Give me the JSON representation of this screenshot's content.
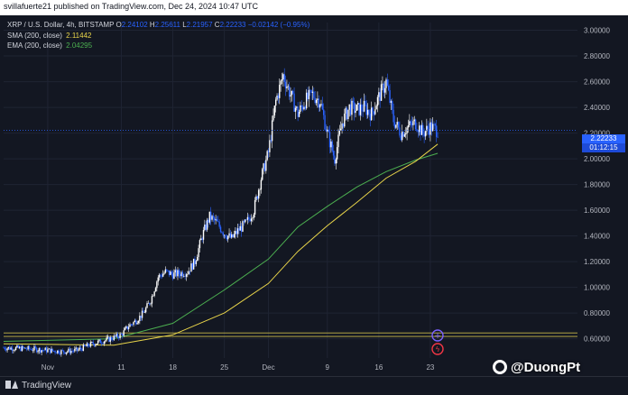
{
  "header": {
    "publisher_text": "svillafuerte21 published on TradingView.com, Dec 24, 2024 10:47 UTC"
  },
  "legend": {
    "symbol": "XRP / U.S. Dollar, 4h, BITSTAMP",
    "ohlc": [
      {
        "label": "O",
        "value": "2.24102"
      },
      {
        "label": "H",
        "value": "2.25611"
      },
      {
        "label": "L",
        "value": "2.21957"
      },
      {
        "label": "C",
        "value": "2.22233"
      }
    ],
    "change": "−0.02142 (−0.95%)",
    "indicators": [
      {
        "label": "SMA (200, close)",
        "value": "2.11442",
        "color": "#e8d44a"
      },
      {
        "label": "EMA (200, close)",
        "value": "2.04295",
        "color": "#4caf50"
      }
    ]
  },
  "price_tag": {
    "price": "2.22233",
    "countdown": "01:12:15"
  },
  "footer": {
    "brand": "TradingView"
  },
  "watermark": {
    "text": "@DuongPt"
  },
  "colors": {
    "background": "#131722",
    "candle_up": "#ffffff",
    "candle_down": "#2962ff",
    "sma": "#e8d44a",
    "ema": "#4caf50",
    "hline": "#c8b84a",
    "price_line": "#2962ff"
  },
  "chart_data": {
    "type": "candlestick",
    "symbol": "XRP / U.S. Dollar, 4h, BITSTAMP",
    "x_ticks": [
      {
        "label": "Nov",
        "x": "2024-11-01"
      },
      {
        "label": "11",
        "x": "2024-11-11"
      },
      {
        "label": "18",
        "x": "2024-11-18"
      },
      {
        "label": "25",
        "x": "2024-11-25"
      },
      {
        "label": "Dec",
        "x": "2024-12-01"
      },
      {
        "label": "9",
        "x": "2024-12-09"
      },
      {
        "label": "16",
        "x": "2024-12-16"
      },
      {
        "label": "23",
        "x": "2024-12-23"
      }
    ],
    "xlim": [
      "2024-10-26",
      "2025-01-12"
    ],
    "y_ticks": [
      "3.00000",
      "2.80000",
      "2.60000",
      "2.40000",
      "2.20000",
      "2.00000",
      "1.80000",
      "1.60000",
      "1.40000",
      "1.20000",
      "1.00000",
      "0.80000",
      "0.60000"
    ],
    "ylim": [
      0.45,
      3.06
    ],
    "horizontal_lines": [
      0.645,
      0.618
    ],
    "price_path": [
      [
        "2024-10-26",
        0.53
      ],
      [
        "2024-10-30",
        0.52
      ],
      [
        "2024-11-03",
        0.5
      ],
      [
        "2024-11-05",
        0.51
      ],
      [
        "2024-11-07",
        0.56
      ],
      [
        "2024-11-09",
        0.59
      ],
      [
        "2024-11-11",
        0.63
      ],
      [
        "2024-11-12",
        0.7
      ],
      [
        "2024-11-13",
        0.74
      ],
      [
        "2024-11-14",
        0.8
      ],
      [
        "2024-11-15",
        0.9
      ],
      [
        "2024-11-16",
        1.08
      ],
      [
        "2024-11-17",
        1.12
      ],
      [
        "2024-11-18",
        1.1
      ],
      [
        "2024-11-20",
        1.12
      ],
      [
        "2024-11-21",
        1.2
      ],
      [
        "2024-11-22",
        1.4
      ],
      [
        "2024-11-23",
        1.55
      ],
      [
        "2024-11-24",
        1.5
      ],
      [
        "2024-11-25",
        1.42
      ],
      [
        "2024-11-26",
        1.38
      ],
      [
        "2024-11-27",
        1.45
      ],
      [
        "2024-11-28",
        1.5
      ],
      [
        "2024-11-29",
        1.6
      ],
      [
        "2024-11-30",
        1.85
      ],
      [
        "2024-12-01",
        2.05
      ],
      [
        "2024-12-02",
        2.45
      ],
      [
        "2024-12-03",
        2.65
      ],
      [
        "2024-12-04",
        2.5
      ],
      [
        "2024-12-05",
        2.35
      ],
      [
        "2024-12-06",
        2.45
      ],
      [
        "2024-12-07",
        2.5
      ],
      [
        "2024-12-08",
        2.45
      ],
      [
        "2024-12-09",
        2.2
      ],
      [
        "2024-12-10",
        2.0
      ],
      [
        "2024-12-11",
        2.28
      ],
      [
        "2024-12-12",
        2.4
      ],
      [
        "2024-12-13",
        2.38
      ],
      [
        "2024-12-14",
        2.4
      ],
      [
        "2024-12-15",
        2.35
      ],
      [
        "2024-12-16",
        2.48
      ],
      [
        "2024-12-17",
        2.6
      ],
      [
        "2024-12-18",
        2.3
      ],
      [
        "2024-12-19",
        2.2
      ],
      [
        "2024-12-20",
        2.25
      ],
      [
        "2024-12-21",
        2.28
      ],
      [
        "2024-12-22",
        2.2
      ],
      [
        "2024-12-23",
        2.25
      ],
      [
        "2024-12-24",
        2.22
      ]
    ],
    "sma_200": [
      [
        "2024-10-26",
        0.56
      ],
      [
        "2024-11-10",
        0.55
      ],
      [
        "2024-11-18",
        0.63
      ],
      [
        "2024-11-25",
        0.8
      ],
      [
        "2024-12-01",
        1.03
      ],
      [
        "2024-12-05",
        1.28
      ],
      [
        "2024-12-09",
        1.48
      ],
      [
        "2024-12-13",
        1.66
      ],
      [
        "2024-12-17",
        1.85
      ],
      [
        "2024-12-21",
        1.98
      ],
      [
        "2024-12-24",
        2.11442
      ]
    ],
    "ema_200": [
      [
        "2024-10-26",
        0.58
      ],
      [
        "2024-11-10",
        0.6
      ],
      [
        "2024-11-18",
        0.72
      ],
      [
        "2024-11-25",
        0.98
      ],
      [
        "2024-12-01",
        1.22
      ],
      [
        "2024-12-05",
        1.47
      ],
      [
        "2024-12-09",
        1.63
      ],
      [
        "2024-12-13",
        1.78
      ],
      [
        "2024-12-17",
        1.9
      ],
      [
        "2024-12-21",
        1.99
      ],
      [
        "2024-12-24",
        2.04295
      ]
    ]
  }
}
